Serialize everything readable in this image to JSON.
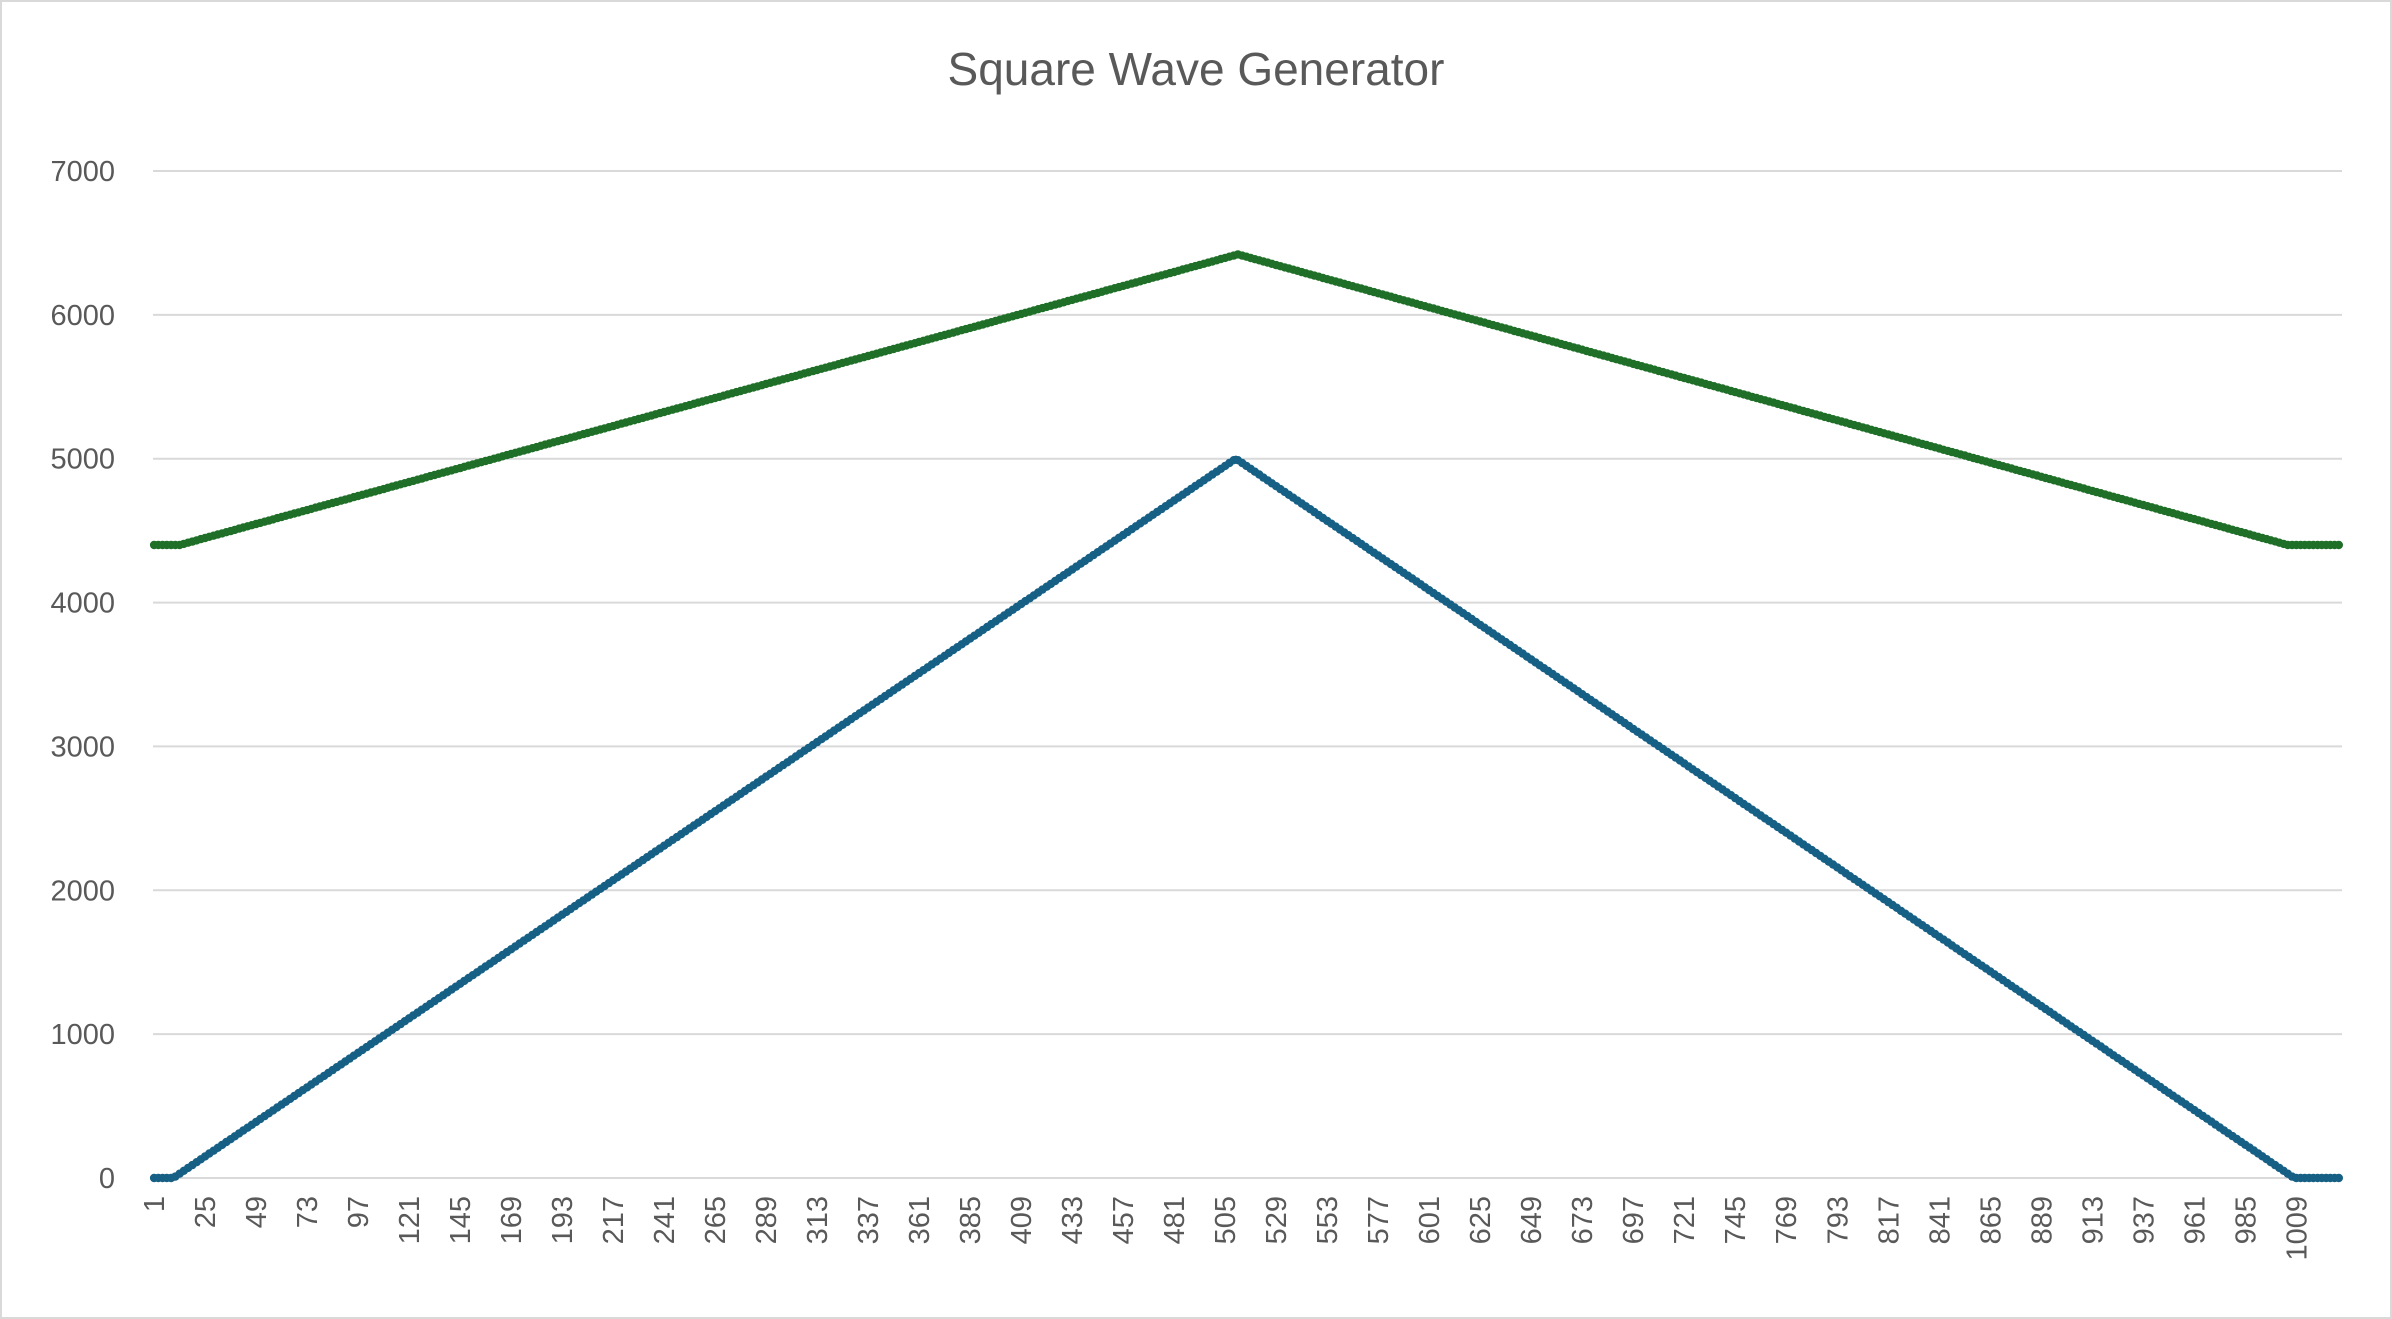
{
  "chart_data": {
    "type": "line",
    "title": "Square Wave Generator",
    "xlabel": "",
    "ylabel": "",
    "x_categories": {
      "first": 1,
      "last": 1030,
      "tick_label_step": 24
    },
    "ylim": [
      0,
      7000
    ],
    "y_ticks": [
      0,
      1000,
      2000,
      3000,
      4000,
      5000,
      6000,
      7000
    ],
    "grid": true,
    "legend": "none",
    "markers": true,
    "series": [
      {
        "color": "#1f6f28",
        "points": [
          [
            1,
            4400
          ],
          [
            13,
            4400
          ],
          [
            511,
            6420
          ],
          [
            1005,
            4400
          ],
          [
            1030,
            4400
          ]
        ]
      },
      {
        "color": "#165f85",
        "points": [
          [
            1,
            0
          ],
          [
            10,
            0
          ],
          [
            510,
            5000
          ],
          [
            1008,
            0
          ],
          [
            1030,
            0
          ]
        ]
      }
    ]
  }
}
